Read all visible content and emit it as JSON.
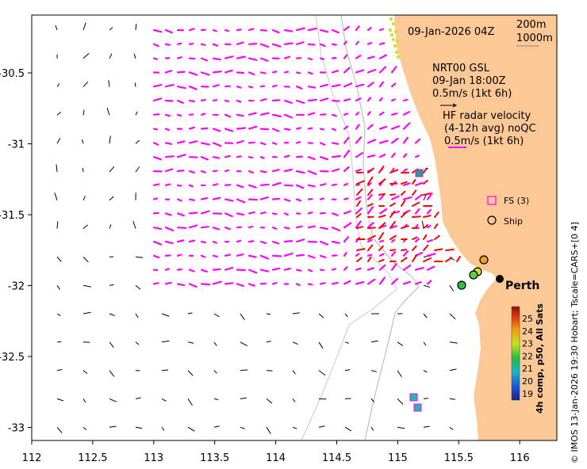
{
  "map": {
    "date_title": "09-Jan-2026 04Z",
    "isobath_200": "200m",
    "isobath_1000": "1000m",
    "model_title": "NRT00 GSL",
    "model_time": "09-Jan 18:00Z",
    "model_scale": "0.5m/s (1kt 6h)",
    "radar_title": "HF radar velocity",
    "radar_sub": "(4-12h avg) noQC",
    "radar_scale": "0.5m/s (1kt 6h)",
    "fs_label": "FS (3)",
    "ship_label": "Ship",
    "city_label": "Perth",
    "credit": "© IMOS 13-Jan-2026 19:30 Hobart; Tscale=CARS+[0 4]",
    "colorbar_title": "4h comp, p50, All Sats",
    "colorbar_ticks": [
      "25",
      "24",
      "23",
      "22",
      "21",
      "20",
      "19"
    ],
    "x_ticks": [
      "112",
      "112.5",
      "113",
      "113.5",
      "114",
      "114.5",
      "115",
      "115.5",
      "116"
    ],
    "y_ticks": [
      "-30.5",
      "-31",
      "-31.5",
      "-32",
      "-32.5",
      "-33"
    ],
    "colors": {
      "land": "#fbc896",
      "radar": "#ff0000",
      "model": "#ff00ff",
      "arrows": "#000000"
    }
  }
}
